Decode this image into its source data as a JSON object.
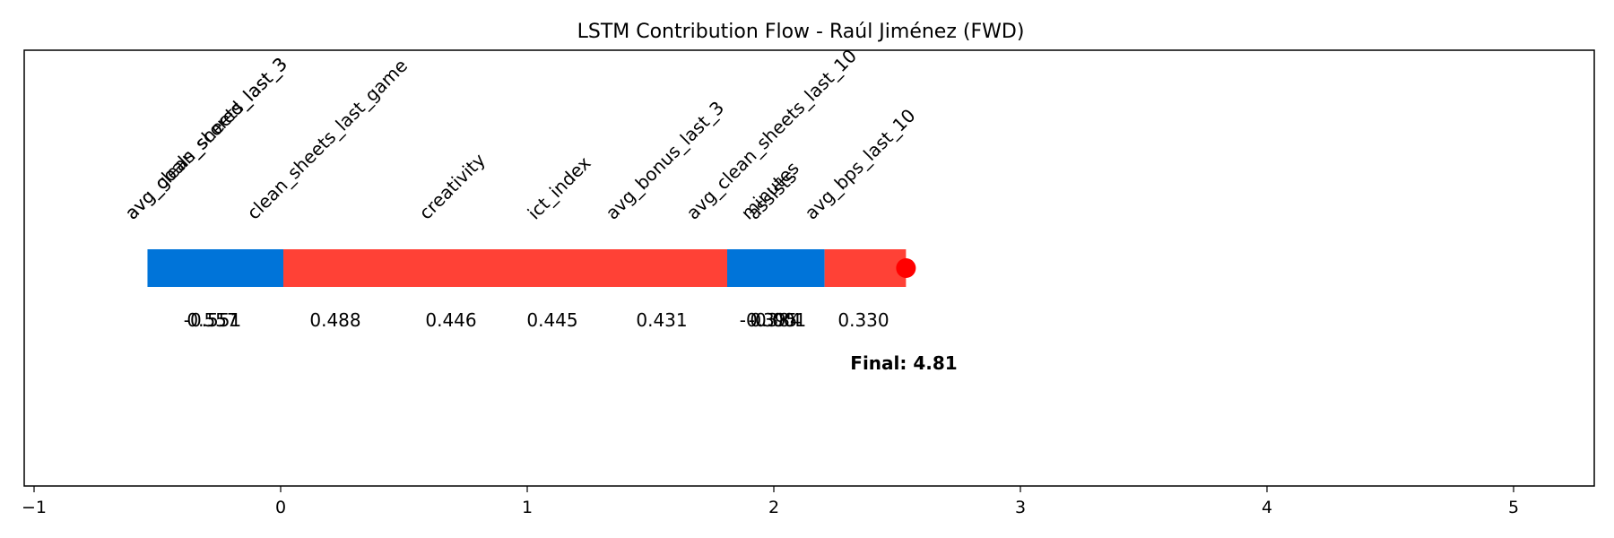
{
  "chart_data": {
    "type": "waterfall",
    "title": "LSTM Contribution Flow - Raúl Jiménez (FWD)",
    "xlabel": "",
    "ylabel": "",
    "xlim": [
      -1.05,
      5.3
    ],
    "xticks": [
      -1,
      0,
      1,
      2,
      3,
      4,
      5
    ],
    "xtick_labels": [
      "−1",
      "0",
      "1",
      "2",
      "3",
      "4",
      "5"
    ],
    "grid": false,
    "positive_color": "#FF4136",
    "negative_color": "#0074D9",
    "marker_color": "#FF0000",
    "contributions": [
      {
        "feature": "avg_goals_scored_last_3",
        "value": 0.557,
        "label": "0.557",
        "sign": "positive"
      },
      {
        "feature": "avg_clean_sheets_last_3",
        "value": -0.551,
        "label": "-0.551",
        "sign": "negative"
      },
      {
        "feature": "clean_sheets_last_game",
        "value": 0.488,
        "label": "0.488",
        "sign": "positive"
      },
      {
        "feature": "creativity",
        "value": 0.446,
        "label": "0.446",
        "sign": "positive"
      },
      {
        "feature": "ict_index",
        "value": 0.445,
        "label": "0.445",
        "sign": "positive"
      },
      {
        "feature": "avg_bonus_last_3",
        "value": 0.431,
        "label": "0.431",
        "sign": "positive"
      },
      {
        "feature": "avg_clean_sheets_last_10",
        "value": -0.395,
        "label": "-0.395",
        "sign": "negative"
      },
      {
        "feature": "minutes",
        "value": 0.384,
        "label": "0.384",
        "sign": "positive"
      },
      {
        "feature": "assists",
        "value": -0.001,
        "label": "-0.001",
        "sign": "negative"
      },
      {
        "feature": "avg_bps_last_10",
        "value": 0.33,
        "label": "0.330",
        "sign": "positive"
      }
    ],
    "bars": [
      {
        "start": -0.551,
        "end": 0.0,
        "sign": "negative"
      },
      {
        "start": 0.0,
        "end": 1.8,
        "sign": "positive"
      },
      {
        "start": 1.8,
        "end": 2.195,
        "sign": "negative"
      },
      {
        "start": 2.195,
        "end": 2.525,
        "sign": "positive"
      }
    ],
    "end_point": 2.525,
    "final_text": "Final: 4.81"
  }
}
